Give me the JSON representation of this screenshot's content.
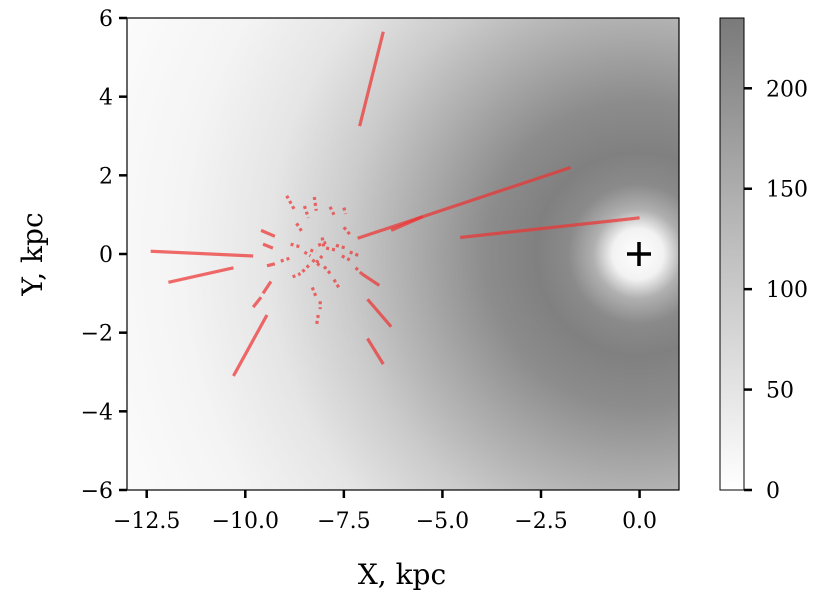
{
  "chart_data": {
    "type": "heatmap",
    "title": "",
    "xlabel": "X, kpc",
    "ylabel": "Y, kpc",
    "xlim": [
      -13.0,
      1.0
    ],
    "ylim": [
      -6.0,
      6.0
    ],
    "x_ticks": [
      -12.5,
      -10.0,
      -7.5,
      -5.0,
      -2.5,
      0.0
    ],
    "x_tick_labels": [
      "−12.5",
      "−10.0",
      "−7.5",
      "−5.0",
      "−2.5",
      "0.0"
    ],
    "y_ticks": [
      -6,
      -4,
      -2,
      0,
      2,
      4,
      6
    ],
    "y_tick_labels": [
      "−6",
      "−4",
      "−2",
      "0",
      "2",
      "4",
      "6"
    ],
    "colorbar": {
      "range": [
        0,
        235
      ],
      "ticks": [
        0,
        50,
        100,
        150,
        200
      ],
      "tick_labels": [
        "0",
        "50",
        "100",
        "150",
        "200"
      ],
      "colormap": "white-to-grey"
    },
    "grid": false,
    "center_marker": {
      "x": 0.0,
      "y": 0.0,
      "symbol": "+"
    },
    "segment_color": "#ee3333",
    "segments": [
      {
        "x1": -7.1,
        "y1": 3.25,
        "x2": -6.5,
        "y2": 5.65,
        "style": "solid"
      },
      {
        "x1": -7.15,
        "y1": 0.4,
        "x2": -1.75,
        "y2": 2.2,
        "style": "solid"
      },
      {
        "x1": -6.3,
        "y1": 0.6,
        "x2": -5.5,
        "y2": 0.95,
        "style": "solid"
      },
      {
        "x1": -4.55,
        "y1": 0.42,
        "x2": 0.0,
        "y2": 0.92,
        "style": "solid"
      },
      {
        "x1": -12.4,
        "y1": 0.07,
        "x2": -9.8,
        "y2": -0.05,
        "style": "solid"
      },
      {
        "x1": -11.95,
        "y1": -0.72,
        "x2": -10.3,
        "y2": -0.35,
        "style": "solid"
      },
      {
        "x1": -10.3,
        "y1": -3.1,
        "x2": -9.45,
        "y2": -1.55,
        "style": "solid"
      },
      {
        "x1": -6.9,
        "y1": -1.15,
        "x2": -6.3,
        "y2": -1.85,
        "style": "solid"
      },
      {
        "x1": -6.9,
        "y1": -2.15,
        "x2": -6.5,
        "y2": -2.8,
        "style": "solid"
      },
      {
        "x1": -7.05,
        "y1": -0.5,
        "x2": -6.6,
        "y2": -0.8,
        "style": "solid"
      },
      {
        "x1": -9.55,
        "y1": -1.0,
        "x2": -9.35,
        "y2": -0.7,
        "style": "solid"
      },
      {
        "x1": -9.8,
        "y1": -1.35,
        "x2": -9.6,
        "y2": -1.1,
        "style": "solid"
      },
      {
        "x1": -9.6,
        "y1": 0.6,
        "x2": -9.25,
        "y2": 0.45,
        "style": "solid"
      },
      {
        "x1": -9.55,
        "y1": 0.25,
        "x2": -9.3,
        "y2": 0.15,
        "style": "solid"
      },
      {
        "x1": -9.45,
        "y1": -0.3,
        "x2": -9.25,
        "y2": -0.25,
        "style": "solid"
      },
      {
        "x1": -8.95,
        "y1": 1.48,
        "x2": -8.75,
        "y2": 1.12,
        "style": "dotted"
      },
      {
        "x1": -8.25,
        "y1": 1.45,
        "x2": -8.2,
        "y2": 1.1,
        "style": "dotted"
      },
      {
        "x1": -8.5,
        "y1": 1.22,
        "x2": -8.4,
        "y2": 0.92,
        "style": "dotted"
      },
      {
        "x1": -7.85,
        "y1": 1.2,
        "x2": -7.75,
        "y2": 1.0,
        "style": "dotted"
      },
      {
        "x1": -8.7,
        "y1": 0.78,
        "x2": -8.55,
        "y2": 0.55,
        "style": "dotted"
      },
      {
        "x1": -7.5,
        "y1": 1.18,
        "x2": -7.45,
        "y2": 1.02,
        "style": "dotted"
      },
      {
        "x1": -8.85,
        "y1": 0.25,
        "x2": -8.6,
        "y2": 0.18,
        "style": "dotted"
      },
      {
        "x1": -9.1,
        "y1": -0.18,
        "x2": -8.85,
        "y2": -0.1,
        "style": "dotted"
      },
      {
        "x1": -8.55,
        "y1": -0.45,
        "x2": -8.35,
        "y2": -0.25,
        "style": "dotted"
      },
      {
        "x1": -8.8,
        "y1": -0.58,
        "x2": -8.6,
        "y2": -0.5,
        "style": "dotted"
      },
      {
        "x1": -8.2,
        "y1": -0.22,
        "x2": -8.05,
        "y2": -0.05,
        "style": "dotted"
      },
      {
        "x1": -7.95,
        "y1": 0.15,
        "x2": -7.7,
        "y2": 0.1,
        "style": "dotted"
      },
      {
        "x1": -7.7,
        "y1": 0.22,
        "x2": -7.45,
        "y2": 0.15,
        "style": "dotted"
      },
      {
        "x1": -7.35,
        "y1": 0.05,
        "x2": -7.1,
        "y2": -0.05,
        "style": "dotted"
      },
      {
        "x1": -7.55,
        "y1": -0.05,
        "x2": -7.35,
        "y2": -0.15,
        "style": "dotted"
      },
      {
        "x1": -7.5,
        "y1": 0.68,
        "x2": -7.35,
        "y2": 0.5,
        "style": "dotted"
      },
      {
        "x1": -8.0,
        "y1": -0.32,
        "x2": -7.8,
        "y2": -0.55,
        "style": "dotted"
      },
      {
        "x1": -7.75,
        "y1": -0.65,
        "x2": -7.6,
        "y2": -0.9,
        "style": "dotted"
      },
      {
        "x1": -7.2,
        "y1": -0.35,
        "x2": -7.05,
        "y2": -0.5,
        "style": "dotted"
      },
      {
        "x1": -8.3,
        "y1": -0.85,
        "x2": -8.2,
        "y2": -1.1,
        "style": "dotted"
      },
      {
        "x1": -8.1,
        "y1": -1.2,
        "x2": -8.1,
        "y2": -1.4,
        "style": "dotted"
      },
      {
        "x1": -8.15,
        "y1": -1.55,
        "x2": -8.2,
        "y2": -1.85,
        "style": "dotted"
      },
      {
        "x1": -8.35,
        "y1": 0.1,
        "x2": -8.2,
        "y2": 0.05,
        "style": "dotted"
      },
      {
        "x1": -8.15,
        "y1": 0.22,
        "x2": -7.95,
        "y2": 0.3,
        "style": "dotted"
      },
      {
        "x1": -8.5,
        "y1": 0.05,
        "x2": -8.35,
        "y2": -0.05,
        "style": "dotted"
      },
      {
        "x1": -8.3,
        "y1": -0.15,
        "x2": -8.1,
        "y2": -0.3,
        "style": "dotted"
      },
      {
        "x1": -8.05,
        "y1": 0.42,
        "x2": -8.0,
        "y2": 0.12,
        "style": "dotted"
      }
    ]
  }
}
